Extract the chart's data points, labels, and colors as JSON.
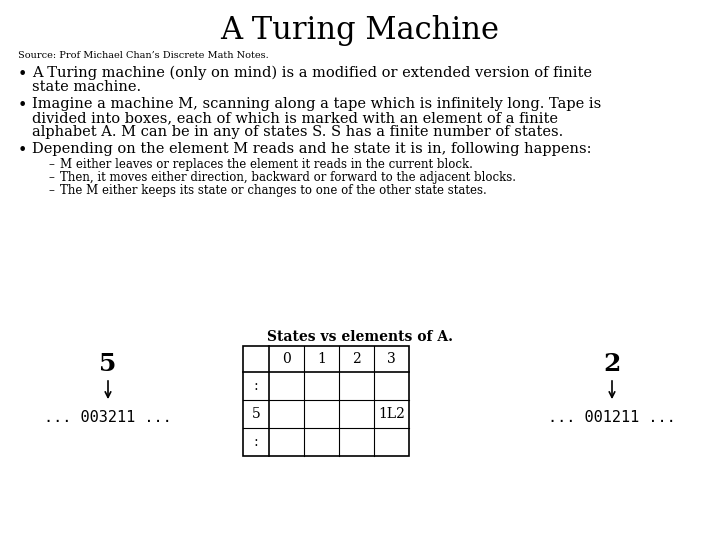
{
  "title": "A Turing Machine",
  "source": "Source: Prof Michael Chan’s Discrete Math Notes.",
  "sub1": "M either leaves or replaces the element it reads in the current block.",
  "sub2": "Then, it moves either direction, backward or forward to the adjacent blocks.",
  "sub3": "The M either keeps its state or changes to one of the other state states.",
  "diagram_title": "States vs elements of A.",
  "left_state": "5",
  "left_tape": "... 003211 ...",
  "right_state": "2",
  "right_tape": "... 001211 ...",
  "table_cell": "1L2",
  "bg_color": "#ffffff",
  "text_color": "#000000",
  "title_fontsize": 22,
  "body_fontsize": 10.5,
  "source_fontsize": 7,
  "sub_fontsize": 8.5,
  "diag_title_fontsize": 10,
  "table_fontsize": 10,
  "state_fontsize": 18,
  "tape_fontsize": 11
}
